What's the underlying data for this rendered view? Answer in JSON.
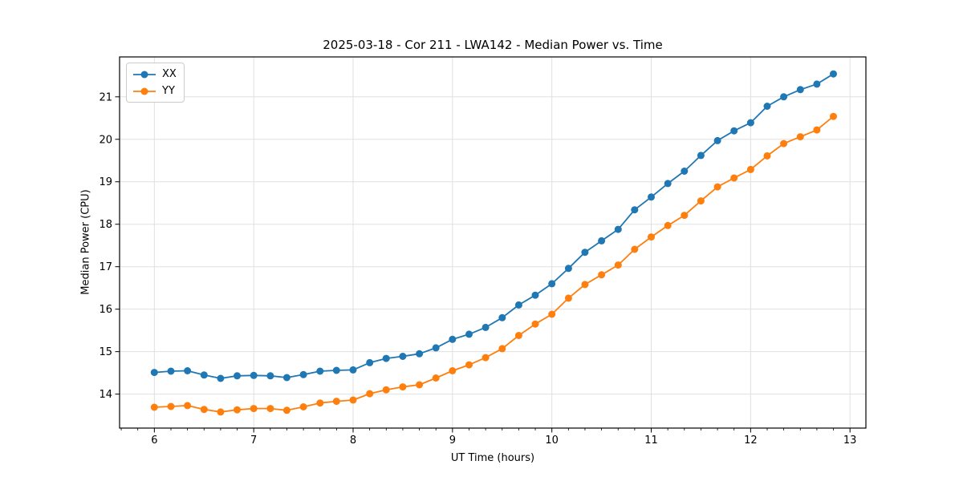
{
  "figure": {
    "title": "2025-03-18 - Cor 211 - LWA142 - Median Power vs. Time",
    "xlabel": "UT Time (hours)",
    "ylabel": "Median Power (CPU)",
    "background_color": "#ffffff"
  },
  "legend": {
    "position": "upper left",
    "items": [
      {
        "label": "XX",
        "color": "#1f77b4"
      },
      {
        "label": "YY",
        "color": "#ff7f0e"
      }
    ]
  },
  "chart_data": {
    "type": "line",
    "title": "2025-03-18 - Cor 211 - LWA142 - Median Power vs. Time",
    "xlabel": "UT Time (hours)",
    "ylabel": "Median Power (CPU)",
    "grid": true,
    "legend_position": "upper left",
    "marker": "circle",
    "x_ticks": [
      6,
      7,
      8,
      9,
      10,
      11,
      12,
      13
    ],
    "y_ticks": [
      14,
      15,
      16,
      17,
      18,
      19,
      20,
      21
    ],
    "x_minor_step": 0.1666667,
    "xlim": [
      5.65,
      13.16
    ],
    "ylim": [
      13.2,
      21.94
    ],
    "grid_color": "#e0e0e0",
    "spine_color": "#000000",
    "tick_color": "#000000",
    "text_color": "#000000",
    "x": [
      6.0,
      6.167,
      6.333,
      6.5,
      6.667,
      6.833,
      7.0,
      7.167,
      7.333,
      7.5,
      7.667,
      7.833,
      8.0,
      8.167,
      8.333,
      8.5,
      8.667,
      8.833,
      9.0,
      9.167,
      9.333,
      9.5,
      9.667,
      9.833,
      10.0,
      10.167,
      10.333,
      10.5,
      10.667,
      10.833,
      11.0,
      11.167,
      11.333,
      11.5,
      11.667,
      11.833,
      12.0,
      12.167,
      12.333,
      12.5,
      12.667,
      12.833
    ],
    "series": [
      {
        "name": "XX",
        "color": "#1f77b4",
        "values": [
          14.51,
          14.54,
          14.55,
          14.45,
          14.37,
          14.43,
          14.44,
          14.43,
          14.39,
          14.46,
          14.54,
          14.56,
          14.57,
          14.74,
          14.84,
          14.89,
          14.95,
          15.09,
          15.29,
          15.41,
          15.57,
          15.8,
          16.1,
          16.33,
          16.6,
          16.96,
          17.34,
          17.61,
          17.88,
          18.34,
          18.64,
          18.96,
          19.25,
          19.62,
          19.97,
          20.2,
          20.39,
          20.78,
          21.0,
          21.17,
          21.3,
          21.54
        ]
      },
      {
        "name": "YY",
        "color": "#ff7f0e",
        "values": [
          13.69,
          13.71,
          13.73,
          13.64,
          13.58,
          13.63,
          13.66,
          13.66,
          13.62,
          13.7,
          13.79,
          13.83,
          13.86,
          14.01,
          14.1,
          14.17,
          14.22,
          14.38,
          14.55,
          14.69,
          14.86,
          15.07,
          15.38,
          15.65,
          15.88,
          16.26,
          16.58,
          16.81,
          17.04,
          17.41,
          17.7,
          17.97,
          18.21,
          18.55,
          18.88,
          19.09,
          19.29,
          19.61,
          19.9,
          20.06,
          20.22,
          20.54
        ]
      }
    ]
  }
}
